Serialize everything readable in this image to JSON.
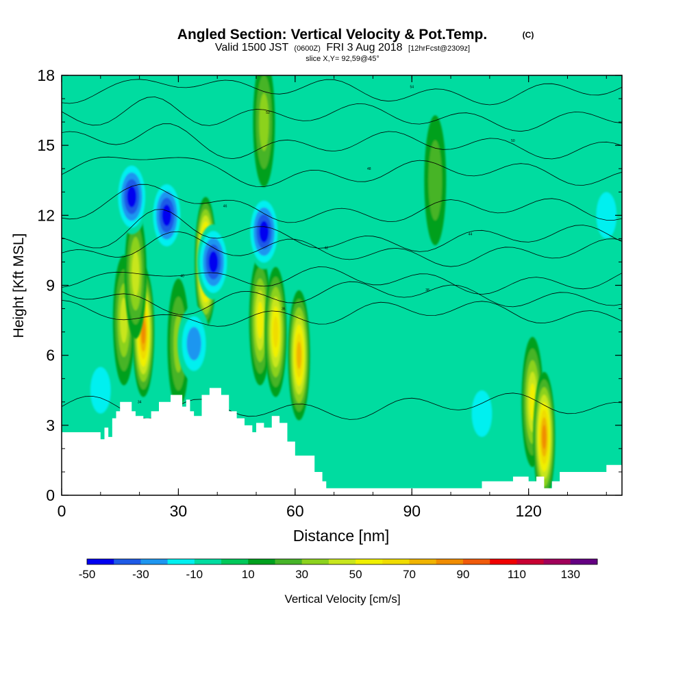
{
  "header": {
    "title": "Angled Section: Vertical Velocity & Pot.Temp.",
    "copyright": "(C)",
    "valid_prefix": "Valid 1500 JST",
    "valid_zulu": "(0600Z)",
    "valid_date": "FRI 3 Aug 2018",
    "forecast": "[12hrFcst@2309z]",
    "slice": "slice X,Y= 92,59@45°"
  },
  "chart_data": {
    "type": "heatmap",
    "xlabel": "Distance [nm]",
    "ylabel": "Height [Kft MSL]",
    "xlim": [
      0,
      144
    ],
    "ylim": [
      0,
      18
    ],
    "xticks": [
      "0",
      "30",
      "60",
      "90",
      "120"
    ],
    "xtick_values": [
      0,
      30,
      60,
      90,
      120
    ],
    "yticks": [
      "0",
      "3",
      "6",
      "9",
      "12",
      "15",
      "18"
    ],
    "ytick_values": [
      0,
      3,
      6,
      9,
      12,
      15,
      18
    ],
    "colorbar": {
      "label": "Vertical Velocity [cm/s]",
      "tick_labels": [
        "-50",
        "-30",
        "-10",
        "10",
        "30",
        "50",
        "70",
        "90",
        "110",
        "130"
      ],
      "tick_values": [
        -50,
        -30,
        -10,
        10,
        30,
        50,
        70,
        90,
        110,
        130
      ],
      "bounds": [
        -50,
        -40,
        -30,
        -20,
        -10,
        0,
        10,
        20,
        30,
        40,
        50,
        60,
        70,
        80,
        90,
        100,
        110,
        120,
        130,
        140
      ],
      "colors": [
        "#0000f0",
        "#1e5ae6",
        "#1e96f0",
        "#00f0f0",
        "#00dca0",
        "#00c85a",
        "#00a01e",
        "#46b428",
        "#8cd21e",
        "#c8e61e",
        "#f0f000",
        "#f0dc00",
        "#f0b400",
        "#f08c00",
        "#f05a0a",
        "#f00000",
        "#c80032",
        "#a0005a",
        "#640082"
      ]
    },
    "background_w": 5,
    "updrafts": [
      {
        "x": 16,
        "z": 7.5,
        "w": 45
      },
      {
        "x": 21,
        "z": 7.0,
        "w": 88
      },
      {
        "x": 19,
        "z": 9.5,
        "w": 40
      },
      {
        "x": 30,
        "z": 6.5,
        "w": 35
      },
      {
        "x": 37,
        "z": 10.0,
        "w": 105
      },
      {
        "x": 51,
        "z": 7.5,
        "w": 55
      },
      {
        "x": 55,
        "z": 7.0,
        "w": 62
      },
      {
        "x": 61,
        "z": 6.0,
        "w": 70
      },
      {
        "x": 96,
        "z": 13.5,
        "w": 22
      },
      {
        "x": 121,
        "z": 4.0,
        "w": 50
      },
      {
        "x": 124,
        "z": 2.5,
        "w": 80
      },
      {
        "x": 52,
        "z": 16.0,
        "w": 35
      }
    ],
    "downdrafts": [
      {
        "x": 18,
        "z": 12.8,
        "w": -45
      },
      {
        "x": 27,
        "z": 12.0,
        "w": -50
      },
      {
        "x": 39,
        "z": 10.0,
        "w": -48
      },
      {
        "x": 52,
        "z": 11.3,
        "w": -50
      },
      {
        "x": 34,
        "z": 6.5,
        "w": -30
      },
      {
        "x": 108,
        "z": 3.5,
        "w": -15
      },
      {
        "x": 10,
        "z": 4.5,
        "w": -15
      },
      {
        "x": 140,
        "z": 12.0,
        "w": -15
      }
    ],
    "theta_contours": [
      {
        "label": "34",
        "z": 3.8
      },
      {
        "label": "36",
        "z": 7.8
      },
      {
        "label": "38",
        "z": 8.6
      },
      {
        "label": "40",
        "z": 9.2
      },
      {
        "label": "42",
        "z": 10.4
      },
      {
        "label": "44",
        "z": 11.0
      },
      {
        "label": "46",
        "z": 12.2
      },
      {
        "label": "48",
        "z": 13.8
      },
      {
        "label": "50",
        "z": 15.0
      },
      {
        "label": "52",
        "z": 16.2
      },
      {
        "label": "54",
        "z": 17.3
      }
    ],
    "terrain": [
      [
        0,
        2.7
      ],
      [
        9,
        2.7
      ],
      [
        10,
        2.4
      ],
      [
        11,
        2.9
      ],
      [
        12,
        2.5
      ],
      [
        13,
        3.3
      ],
      [
        14,
        3.6
      ],
      [
        15,
        4.0
      ],
      [
        18,
        3.6
      ],
      [
        19,
        3.4
      ],
      [
        21,
        3.3
      ],
      [
        23,
        3.6
      ],
      [
        25,
        4.0
      ],
      [
        28,
        4.3
      ],
      [
        31,
        3.8
      ],
      [
        32,
        4.1
      ],
      [
        33,
        3.6
      ],
      [
        34,
        3.4
      ],
      [
        36,
        4.3
      ],
      [
        38,
        4.6
      ],
      [
        41,
        4.3
      ],
      [
        43,
        3.6
      ],
      [
        45,
        3.3
      ],
      [
        47,
        3.0
      ],
      [
        49,
        2.7
      ],
      [
        50,
        3.1
      ],
      [
        52,
        2.9
      ],
      [
        54,
        3.4
      ],
      [
        56,
        3.1
      ],
      [
        58,
        2.3
      ],
      [
        60,
        1.7
      ],
      [
        64,
        1.7
      ],
      [
        65,
        1.0
      ],
      [
        67,
        0.6
      ],
      [
        68,
        0.3
      ],
      [
        107,
        0.3
      ],
      [
        108,
        0.6
      ],
      [
        114,
        0.6
      ],
      [
        116,
        0.8
      ],
      [
        119,
        0.8
      ],
      [
        120,
        0.6
      ],
      [
        122,
        0.8
      ],
      [
        124,
        0.3
      ],
      [
        126,
        0.6
      ],
      [
        128,
        1.0
      ],
      [
        138,
        1.0
      ],
      [
        140,
        1.3
      ],
      [
        144,
        1.3
      ]
    ]
  }
}
